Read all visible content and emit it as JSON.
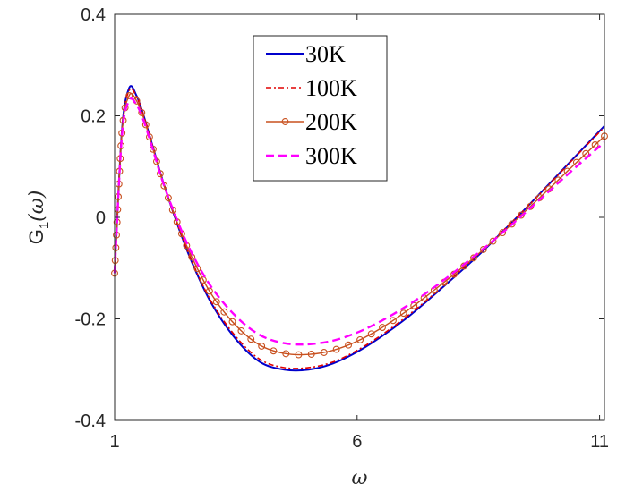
{
  "chart_data": {
    "type": "line",
    "title": "",
    "xlabel": "ω",
    "ylabel": "G",
    "ylabel_subscript": "1",
    "ylabel_suffix": "(ω)",
    "xlim": [
      1,
      11.1
    ],
    "ylim": [
      -0.4,
      0.4
    ],
    "x_ticks": [
      1,
      6,
      11
    ],
    "x_tick_labels": [
      "1",
      "6",
      "11"
    ],
    "y_ticks": [
      -0.4,
      -0.2,
      0,
      0.2,
      0.4
    ],
    "y_tick_labels": [
      "-0.4",
      "-0.2",
      "0",
      "0.2",
      "0.4"
    ],
    "grid": false,
    "legend_position": "top-center",
    "series": [
      {
        "name": "30K",
        "color": "#0000cc",
        "style": "solid",
        "x": [
          1,
          1.15,
          1.3,
          1.45,
          1.6,
          1.8,
          2.0,
          2.3,
          2.6,
          3.0,
          3.5,
          4.0,
          4.5,
          5.0,
          5.5,
          6.0,
          6.5,
          7.0,
          7.5,
          8.0,
          8.5,
          9.0,
          9.5,
          10.0,
          10.5,
          11.1
        ],
        "y": [
          -0.11,
          0.17,
          0.255,
          0.24,
          0.2,
          0.135,
          0.07,
          -0.015,
          -0.09,
          -0.17,
          -0.24,
          -0.285,
          -0.3,
          -0.3,
          -0.288,
          -0.265,
          -0.235,
          -0.2,
          -0.16,
          -0.118,
          -0.075,
          -0.028,
          0.02,
          0.07,
          0.12,
          0.18
        ]
      },
      {
        "name": "100K",
        "color": "#e00000",
        "style": "dashdot",
        "x": [
          1,
          1.15,
          1.3,
          1.45,
          1.6,
          1.8,
          2.0,
          2.3,
          2.6,
          3.0,
          3.5,
          4.0,
          4.5,
          5.0,
          5.5,
          6.0,
          6.5,
          7.0,
          7.5,
          8.0,
          8.5,
          9.0,
          9.5,
          10.0,
          10.5,
          11.1
        ],
        "y": [
          -0.11,
          0.17,
          0.25,
          0.238,
          0.2,
          0.135,
          0.07,
          -0.015,
          -0.088,
          -0.167,
          -0.235,
          -0.28,
          -0.296,
          -0.296,
          -0.285,
          -0.262,
          -0.232,
          -0.197,
          -0.158,
          -0.116,
          -0.073,
          -0.027,
          0.02,
          0.069,
          0.119,
          0.178
        ]
      },
      {
        "name": "200K",
        "color": "#c8501e",
        "style": "solid-marker",
        "x": [
          1,
          1.15,
          1.3,
          1.45,
          1.6,
          1.8,
          2.0,
          2.3,
          2.6,
          3.0,
          3.5,
          4.0,
          4.5,
          5.0,
          5.5,
          6.0,
          6.5,
          7.0,
          7.5,
          8.0,
          8.5,
          9.0,
          9.5,
          10.0,
          10.5,
          11.1
        ],
        "y": [
          -0.11,
          0.165,
          0.24,
          0.23,
          0.195,
          0.132,
          0.068,
          -0.012,
          -0.08,
          -0.152,
          -0.213,
          -0.252,
          -0.268,
          -0.27,
          -0.262,
          -0.244,
          -0.218,
          -0.186,
          -0.15,
          -0.112,
          -0.072,
          -0.03,
          0.015,
          0.06,
          0.106,
          0.16
        ]
      },
      {
        "name": "300K",
        "color": "#ff00ff",
        "style": "dashed",
        "x": [
          1,
          1.15,
          1.3,
          1.45,
          1.6,
          1.8,
          2.0,
          2.3,
          2.6,
          3.0,
          3.5,
          4.0,
          4.5,
          5.0,
          5.5,
          6.0,
          6.5,
          7.0,
          7.5,
          8.0,
          8.5,
          9.0,
          9.5,
          10.0,
          10.5,
          11.1
        ],
        "y": [
          -0.11,
          0.16,
          0.23,
          0.222,
          0.19,
          0.13,
          0.068,
          -0.008,
          -0.072,
          -0.138,
          -0.195,
          -0.232,
          -0.248,
          -0.25,
          -0.243,
          -0.227,
          -0.204,
          -0.176,
          -0.144,
          -0.108,
          -0.07,
          -0.03,
          0.012,
          0.055,
          0.098,
          0.148
        ]
      }
    ]
  }
}
